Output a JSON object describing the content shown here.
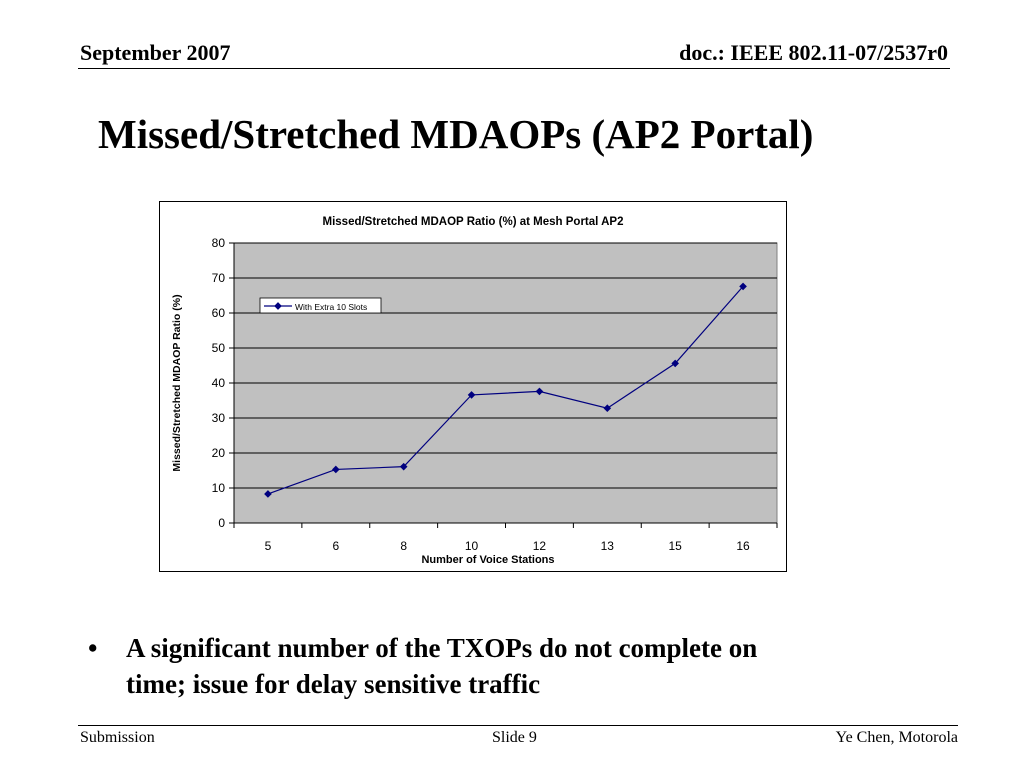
{
  "header": {
    "date": "September 2007",
    "doc_id": "doc.: IEEE 802.11-07/2537r0"
  },
  "slide": {
    "title": "Missed/Stretched MDAOPs (AP2 Portal)"
  },
  "bullets": [
    {
      "text_line1": "A significant number of the TXOPs do not complete on",
      "text_line2": "time; issue for delay sensitive traffic"
    }
  ],
  "footer": {
    "left": "Submission",
    "center": "Slide 9",
    "right": "Ye Chen, Motorola"
  },
  "chart_data": {
    "type": "line",
    "title": "Missed/Stretched MDAOP Ratio (%) at Mesh Portal AP2",
    "xlabel": "Number of Voice Stations",
    "ylabel": "Missed/Stretched MDAOP Ratio (%)",
    "categories": [
      "5",
      "6",
      "8",
      "10",
      "12",
      "13",
      "15",
      "16"
    ],
    "series": [
      {
        "name": "With Extra 10 Slots",
        "values": [
          8.3,
          15.3,
          16.1,
          36.6,
          37.6,
          32.8,
          45.6,
          67.6
        ],
        "color": "#00007f"
      }
    ],
    "ylim": [
      0,
      80
    ],
    "yticks": [
      0,
      10,
      20,
      30,
      40,
      50,
      60,
      70,
      80
    ],
    "grid": true,
    "legend": "top-left",
    "plot_background": "#c0c0c0"
  }
}
